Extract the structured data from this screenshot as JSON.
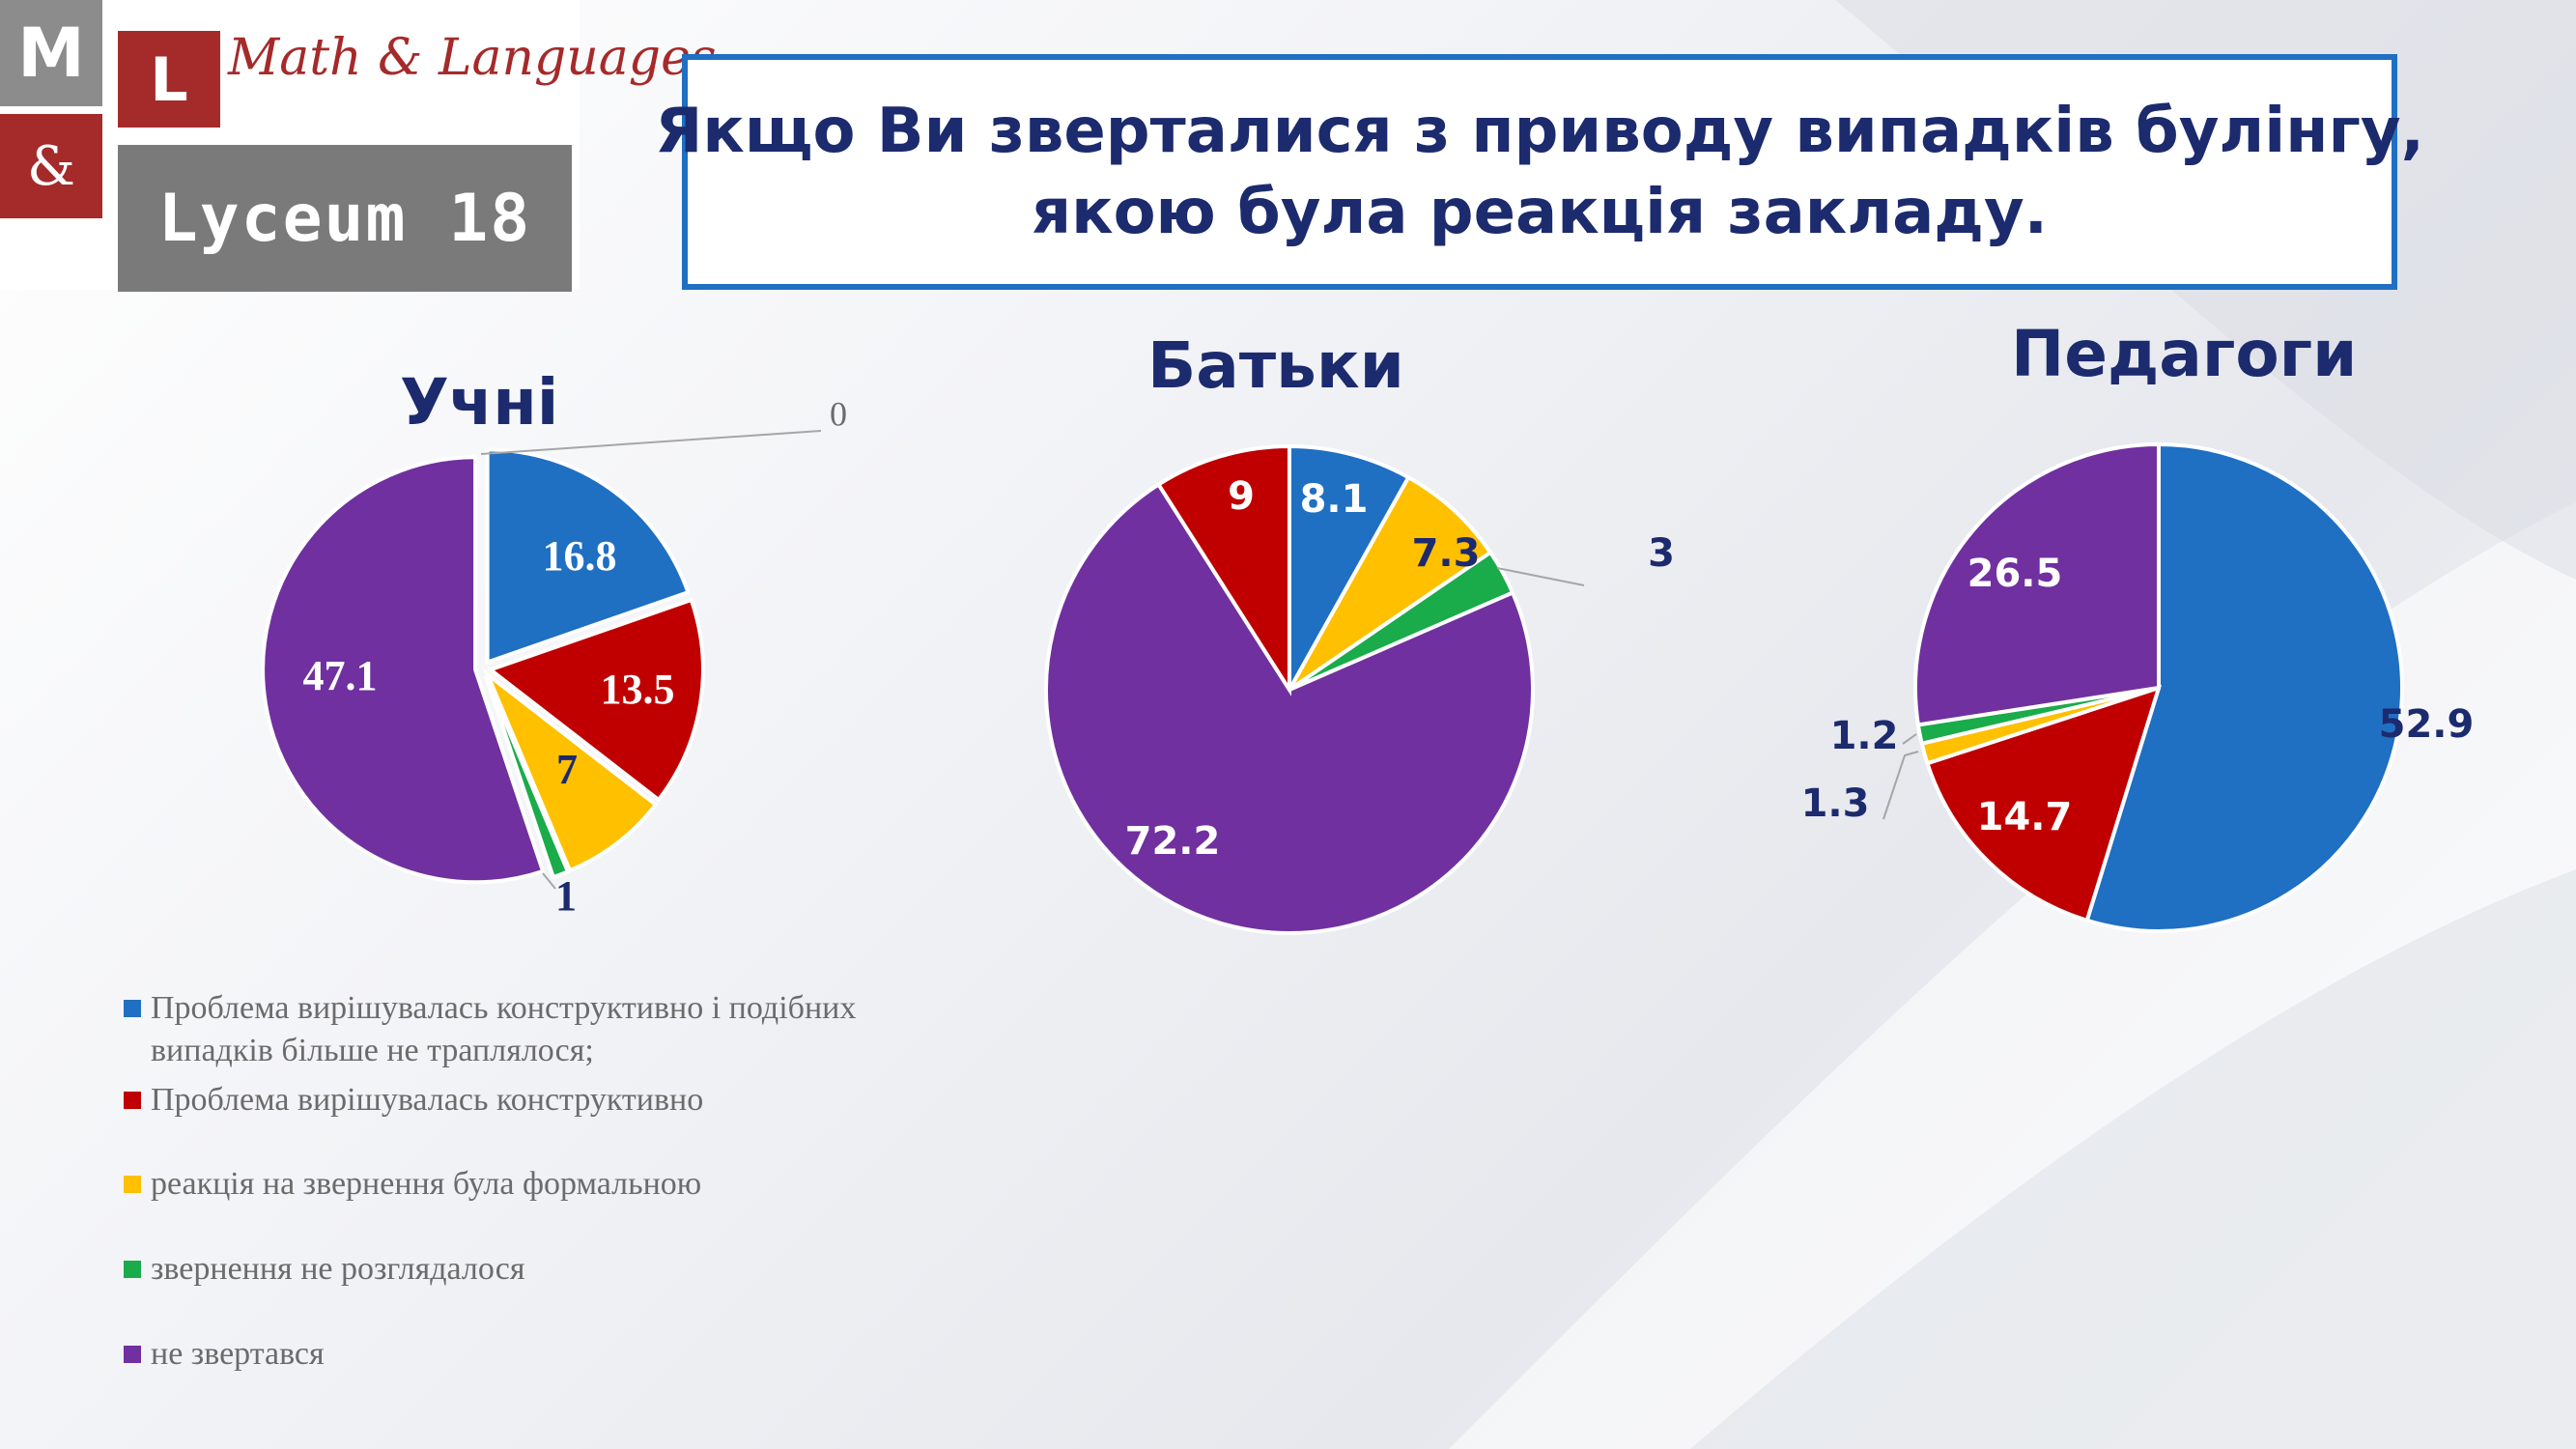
{
  "logo": {
    "m_letter": "M",
    "l_letter": "L",
    "amp": "&",
    "script_text": "Math & Languages",
    "lyceum_text": "Lyceum 18"
  },
  "title": {
    "line1": "Якщо Ви зверталися з приводу випадків булінгу,",
    "line2": "якою була реакція закладу."
  },
  "legend": [
    {
      "label_lines": [
        "Проблема вирішувалась конструктивно і подібних",
        "випадків більше не траплялося;"
      ],
      "color": "#1f6fc2"
    },
    {
      "label_lines": [
        "Проблема вирішувалась конструктивно"
      ],
      "color": "#c00000"
    },
    {
      "label_lines": [
        "реакція на звернення була формальною"
      ],
      "color": "#ffc000"
    },
    {
      "label_lines": [
        "звернення не розглядалося"
      ],
      "color": "#1aab4b"
    },
    {
      "label_lines": [
        "не звертався"
      ],
      "color": "#7030a0"
    }
  ],
  "chart_data": [
    {
      "type": "pie",
      "title": "Учні",
      "categories": [
        "Проблема вирішувалась конструктивно і подібних випадків більше не траплялося;",
        "Проблема вирішувалась конструктивно",
        "реакція на звернення була формальною",
        "звернення не розглядалося",
        "не звертався"
      ],
      "values": [
        16.8,
        13.5,
        7,
        1,
        47.1
      ],
      "labels": [
        "16.8",
        "13.5",
        "7",
        "1",
        "47.1"
      ],
      "extra_label": "0",
      "colors": [
        "#1f6fc2",
        "#c00000",
        "#ffc000",
        "#1aab4b",
        "#7030a0"
      ]
    },
    {
      "type": "pie",
      "title": "Батьки",
      "categories": [
        "Проблема вирішувалась конструктивно і подібних випадків більше не траплялося;",
        "реакція на звернення була формальною",
        "звернення не розглядалося",
        "не звертався",
        "Проблема вирішувалась конструктивно"
      ],
      "values": [
        8.1,
        7.3,
        3,
        72.2,
        9
      ],
      "labels": [
        "8.1",
        "7.3",
        "3",
        "72.2",
        "9"
      ],
      "colors": [
        "#1f6fc2",
        "#ffc000",
        "#1aab4b",
        "#7030a0",
        "#c00000"
      ]
    },
    {
      "type": "pie",
      "title": "Педагоги",
      "categories": [
        "Проблема вирішувалась конструктивно і подібних випадків більше не траплялося;",
        "Проблема вирішувалась конструктивно",
        "реакція на звернення була формальною",
        "звернення не розглядалося",
        "не звертався"
      ],
      "values": [
        52.9,
        14.7,
        1.3,
        1.2,
        26.5
      ],
      "labels": [
        "52.9",
        "14.7",
        "1.3",
        "1.2",
        "26.5"
      ],
      "colors": [
        "#1f6fc2",
        "#c00000",
        "#ffc000",
        "#1aab4b",
        "#7030a0"
      ]
    }
  ]
}
